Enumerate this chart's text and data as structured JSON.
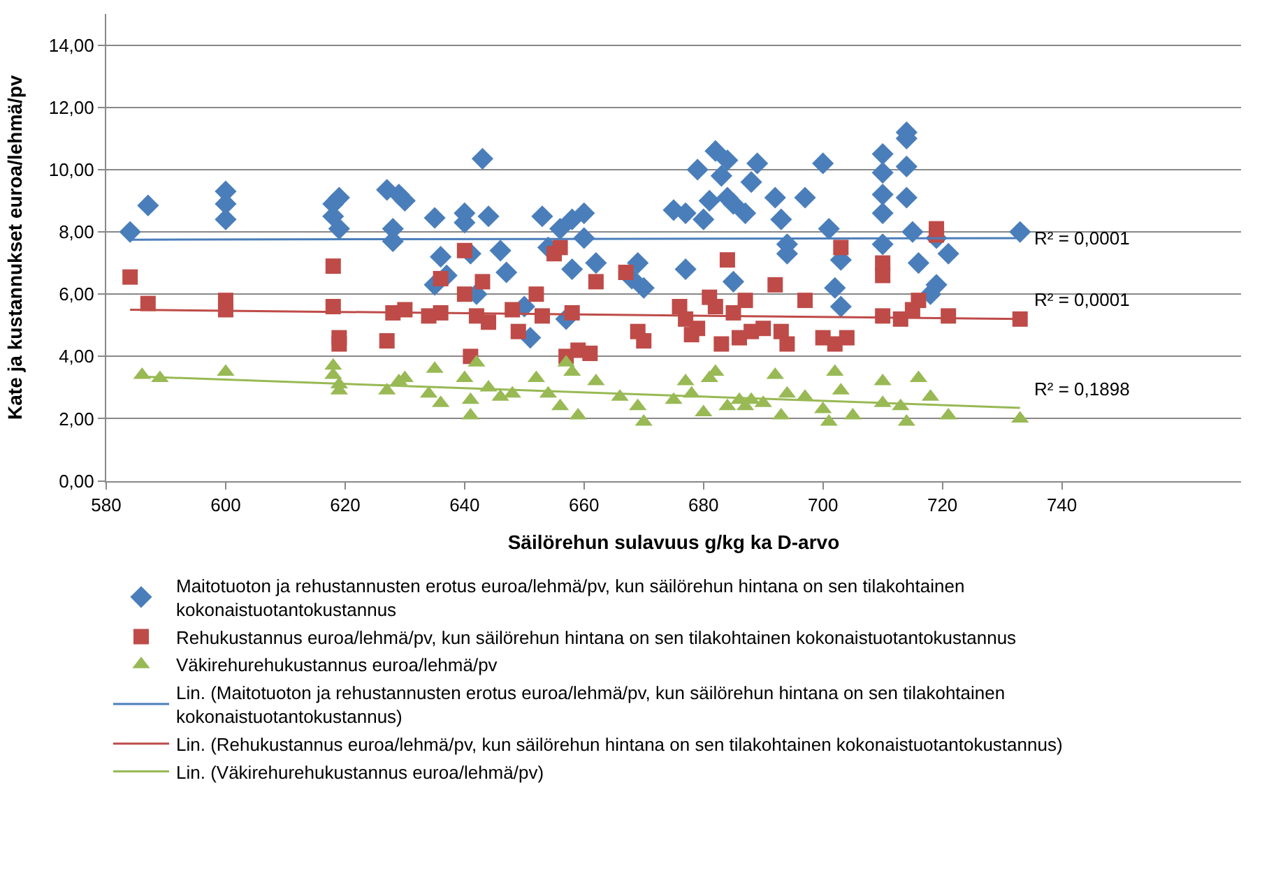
{
  "chart_data": {
    "type": "scatter",
    "xlabel": "Säilörehun sulavuus g/kg ka D-arvo",
    "ylabel": "Kate ja kustannukset euroa/lehmä/pv",
    "xlim": [
      580,
      770
    ],
    "xticks": [
      580,
      600,
      620,
      640,
      660,
      680,
      700,
      720,
      740
    ],
    "ylim": [
      0,
      15
    ],
    "yticks": [
      {
        "value": 0,
        "label": "0,00"
      },
      {
        "value": 2,
        "label": "2,00"
      },
      {
        "value": 4,
        "label": "4,00"
      },
      {
        "value": 6,
        "label": "6,00"
      },
      {
        "value": 8,
        "label": "8,00"
      },
      {
        "value": 10,
        "label": "10,00"
      },
      {
        "value": 12,
        "label": "12,00"
      },
      {
        "value": 14,
        "label": "14,00"
      }
    ],
    "grid": "y",
    "legend": "bottom",
    "series": [
      {
        "name": "Maitotuoton ja rehustannusten erotus euroa/lehmä/pv, kun säilörehun hintana on sen tilakohtainen kokonaistuotantokustannus",
        "color": "#4a7ebb",
        "marker": "diamond",
        "x": [
          584,
          587,
          600,
          600,
          600,
          618,
          618,
          619,
          619,
          627,
          628,
          628,
          629,
          630,
          635,
          635,
          636,
          637,
          640,
          640,
          641,
          642,
          643,
          644,
          646,
          647,
          650,
          651,
          653,
          654,
          656,
          657,
          658,
          658,
          660,
          660,
          662,
          668,
          669,
          670,
          675,
          677,
          677,
          679,
          680,
          681,
          682,
          683,
          684,
          684,
          685,
          685,
          687,
          688,
          689,
          692,
          693,
          694,
          694,
          697,
          700,
          701,
          702,
          703,
          703,
          710,
          710,
          710,
          710,
          710,
          714,
          714,
          714,
          714,
          715,
          716,
          718,
          719,
          719,
          721,
          733
        ],
        "values": [
          8.0,
          8.85,
          9.3,
          8.9,
          8.4,
          8.9,
          8.5,
          9.1,
          8.1,
          9.35,
          8.1,
          7.7,
          9.2,
          9.0,
          8.45,
          6.3,
          7.2,
          6.6,
          8.6,
          8.3,
          7.3,
          6.0,
          10.35,
          8.5,
          7.4,
          6.7,
          5.6,
          4.6,
          8.5,
          7.5,
          8.1,
          5.2,
          6.8,
          8.4,
          7.8,
          8.6,
          7.0,
          6.5,
          7.0,
          6.2,
          8.7,
          8.6,
          6.8,
          10.0,
          8.4,
          9.0,
          10.6,
          9.8,
          10.3,
          9.1,
          8.9,
          6.4,
          8.6,
          9.6,
          10.2,
          9.1,
          8.4,
          7.6,
          7.3,
          9.1,
          10.2,
          8.1,
          6.2,
          7.1,
          5.6,
          10.5,
          9.9,
          9.2,
          8.6,
          7.6,
          11.2,
          11.0,
          10.1,
          9.1,
          8.0,
          7.0,
          6.0,
          6.3,
          7.8,
          7.3,
          8.0
        ]
      },
      {
        "name": "Rehukustannus euroa/lehmä/pv, kun säilörehun hintana on sen tilakohtainen kokonaistuotantokustannus",
        "color": "#be4b48",
        "marker": "square",
        "x": [
          584,
          587,
          600,
          600,
          618,
          618,
          619,
          619,
          627,
          628,
          630,
          634,
          636,
          636,
          640,
          640,
          641,
          642,
          643,
          644,
          648,
          649,
          652,
          653,
          655,
          656,
          657,
          658,
          659,
          661,
          662,
          667,
          669,
          670,
          676,
          677,
          678,
          679,
          681,
          682,
          683,
          684,
          685,
          686,
          687,
          688,
          690,
          692,
          693,
          694,
          697,
          700,
          702,
          703,
          704,
          710,
          710,
          710,
          713,
          715,
          716,
          719,
          719,
          721,
          733
        ],
        "values": [
          6.55,
          5.7,
          5.8,
          5.5,
          6.9,
          5.6,
          4.6,
          4.4,
          4.5,
          5.4,
          5.5,
          5.3,
          5.4,
          6.5,
          7.4,
          6.0,
          4.0,
          5.3,
          6.4,
          5.1,
          5.5,
          4.8,
          6.0,
          5.3,
          7.3,
          7.5,
          4.0,
          5.4,
          4.2,
          4.1,
          6.4,
          6.7,
          4.8,
          4.5,
          5.6,
          5.2,
          4.7,
          4.9,
          5.9,
          5.6,
          4.4,
          7.1,
          5.4,
          4.6,
          5.8,
          4.8,
          4.9,
          6.3,
          4.8,
          4.4,
          5.8,
          4.6,
          4.4,
          7.5,
          4.6,
          7.0,
          6.6,
          5.3,
          5.2,
          5.5,
          5.8,
          8.1,
          7.9,
          5.3,
          5.2
        ]
      },
      {
        "name": "Väkirehurehukustannus euroa/lehmä/pv",
        "color": "#98b954",
        "marker": "triangle",
        "x": [
          586,
          589,
          600,
          618,
          618,
          619,
          619,
          627,
          629,
          630,
          634,
          635,
          636,
          640,
          641,
          641,
          642,
          644,
          646,
          648,
          652,
          654,
          656,
          657,
          658,
          659,
          662,
          666,
          669,
          670,
          675,
          677,
          678,
          680,
          681,
          682,
          684,
          686,
          687,
          688,
          690,
          692,
          693,
          694,
          697,
          700,
          701,
          702,
          703,
          705,
          710,
          710,
          713,
          714,
          716,
          718,
          721,
          733
        ],
        "values": [
          3.4,
          3.3,
          3.5,
          3.7,
          3.4,
          3.1,
          2.9,
          2.9,
          3.2,
          3.3,
          2.8,
          3.6,
          2.5,
          3.3,
          2.6,
          2.1,
          3.8,
          3.0,
          2.7,
          2.8,
          3.3,
          2.8,
          2.4,
          3.8,
          3.5,
          2.1,
          3.2,
          2.7,
          2.4,
          1.9,
          2.6,
          3.2,
          2.8,
          2.2,
          3.3,
          3.5,
          2.4,
          2.6,
          2.4,
          2.6,
          2.5,
          3.4,
          2.1,
          2.8,
          2.7,
          2.3,
          1.9,
          3.5,
          2.9,
          2.1,
          3.2,
          2.5,
          2.4,
          1.9,
          3.3,
          2.7,
          2.1,
          2.0
        ]
      },
      {
        "type": "line",
        "name": "Lin. (Maitotuoton ja rehustannusten erotus euroa/lehmä/pv, kun säilörehun hintana on sen tilakohtainen kokonaistuotantokustannus)",
        "color": "#4a7ebb",
        "x": [
          584,
          733
        ],
        "values": [
          7.75,
          7.8
        ]
      },
      {
        "type": "line",
        "name": "Lin. (Rehukustannus euroa/lehmä/pv, kun säilörehun hintana on sen tilakohtainen kokonaistuotantokustannus)",
        "color": "#be4b48",
        "x": [
          584,
          733
        ],
        "values": [
          5.5,
          5.2
        ]
      },
      {
        "type": "line",
        "name": "Lin. (Väkirehurehukustannus euroa/lehmä/pv)",
        "color": "#98b954",
        "x": [
          586,
          733
        ],
        "values": [
          3.35,
          2.35
        ]
      }
    ],
    "annotations": [
      "R² = 0,0001",
      "R² = 0,0001",
      "R² = 0,1898"
    ]
  }
}
